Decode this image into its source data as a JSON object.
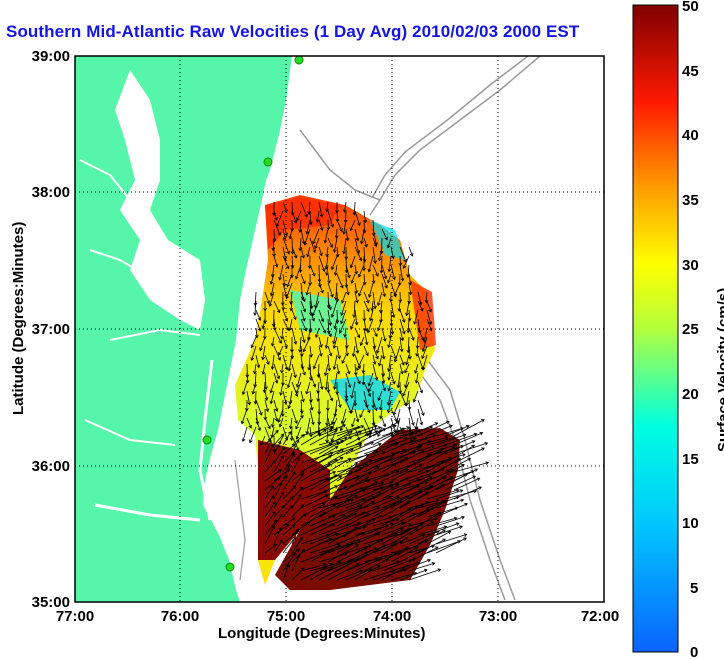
{
  "title": "Southern Mid-Atlantic Raw Velocities (1 Day Avg) 2010/02/03 2000 EST",
  "xlabel": "Longitude (Degrees:Minutes)",
  "ylabel": "Latitude (Degrees:Minutes)",
  "colorbar_label": "Surface Velocity (cm/s)",
  "x_ticks": [
    "77:00",
    "76:00",
    "75:00",
    "74:00",
    "73:00",
    "72:00"
  ],
  "y_ticks": [
    "39:00",
    "38:00",
    "37:00",
    "36:00",
    "35:00"
  ],
  "colorbar_ticks": [
    "50",
    "45",
    "40",
    "35",
    "30",
    "25",
    "20",
    "15",
    "10",
    "5",
    "0"
  ],
  "colors": {
    "land": "#55f5aa",
    "title": "#1414e6",
    "bathymetry": "#9a9a9a",
    "station": "#22dd22",
    "grid": "#000000"
  },
  "chart_data": {
    "type": "map",
    "xlim": [
      -77,
      -72
    ],
    "ylim": [
      35,
      39
    ],
    "colorbar_range": [
      0,
      50
    ],
    "colormap": "jet",
    "grid": true
  }
}
